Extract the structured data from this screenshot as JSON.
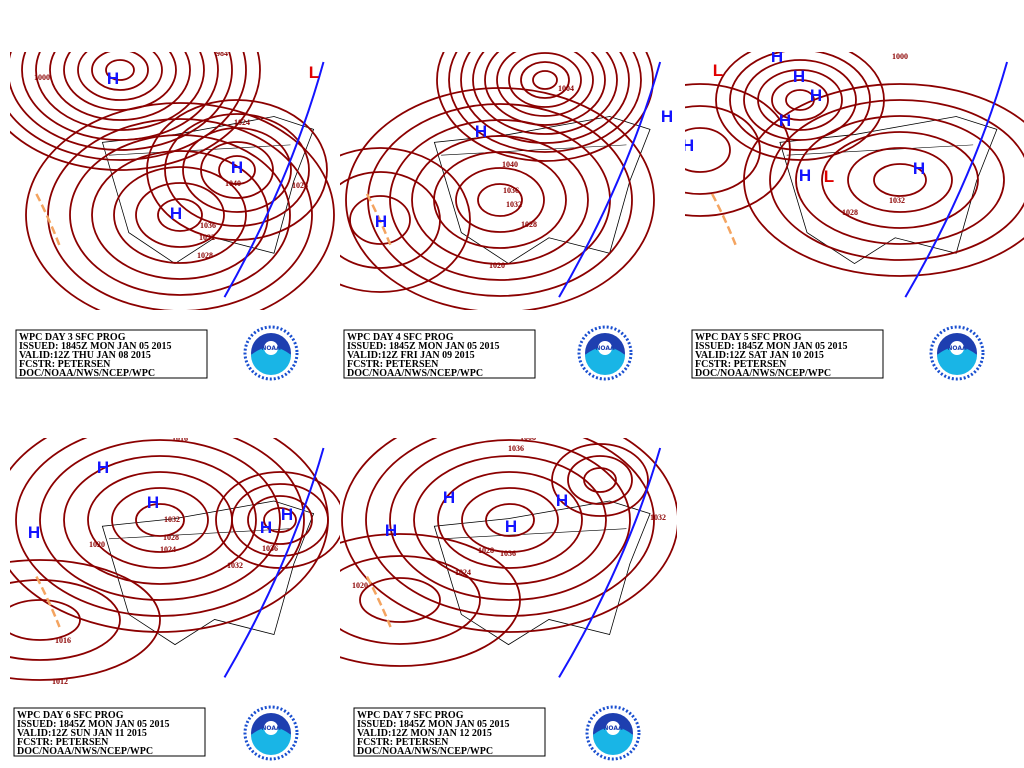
{
  "panels": [
    {
      "caption": [
        "WPC DAY 3 SFC PROG",
        "ISSUED: 1845Z MON JAN 05 2015",
        "VALID:12Z THU JAN 08 2015",
        "FCSTR: PETERSEN",
        "DOC/NOAA/NWS/NCEP/WPC"
      ],
      "centers": [
        "H",
        "H",
        "H",
        "L"
      ],
      "isobars": [
        "1000",
        "984",
        "1024",
        "1036",
        "1032",
        "1028",
        "1028",
        "1040"
      ]
    },
    {
      "caption": [
        "WPC DAY 4 SFC PROG",
        "ISSUED: 1845Z MON JAN 05 2015",
        "VALID:12Z FRI JAN 09 2015",
        "FCSTR: PETERSEN",
        "DOC/NOAA/NWS/NCEP/WPC"
      ],
      "centers": [
        "H",
        "H",
        "H"
      ],
      "isobars": [
        "988",
        "1004",
        "1040",
        "1036",
        "1032",
        "1028",
        "1020"
      ]
    },
    {
      "caption": [
        "WPC DAY 5 SFC PROG",
        "ISSUED: 1845Z MON JAN 05 2015",
        "VALID:12Z SAT JAN 10 2015",
        "FCSTR: PETERSEN",
        "DOC/NOAA/NWS/NCEP/WPC"
      ],
      "centers": [
        "H",
        "H",
        "H",
        "H",
        "H",
        "H",
        "H",
        "L",
        "L"
      ],
      "isobars": [
        "1000",
        "1028",
        "1032",
        "996"
      ]
    },
    {
      "caption": [
        "WPC DAY 6 SFC PROG",
        "ISSUED: 1845Z MON JAN 05 2015",
        "VALID:12Z SUN JAN 11 2015",
        "FCSTR: PETERSEN",
        "DOC/NOAA/NWS/NCEP/WPC"
      ],
      "centers": [
        "H",
        "H",
        "H",
        "H",
        "H"
      ],
      "isobars": [
        "1016",
        "1032",
        "1028",
        "1024",
        "1020",
        "1036",
        "1032",
        "1016",
        "1012"
      ]
    },
    {
      "caption": [
        "WPC DAY 7 SFC PROG",
        "ISSUED: 1845Z MON JAN 05 2015",
        "VALID:12Z MON JAN 12 2015",
        "FCSTR: PETERSEN",
        "DOC/NOAA/NWS/NCEP/WPC"
      ],
      "centers": [
        "H",
        "H",
        "H",
        "H"
      ],
      "isobars": [
        "1008",
        "1036",
        "1028",
        "1036",
        "1024",
        "1032",
        "1020"
      ]
    }
  ],
  "logo_text": "NOAA"
}
